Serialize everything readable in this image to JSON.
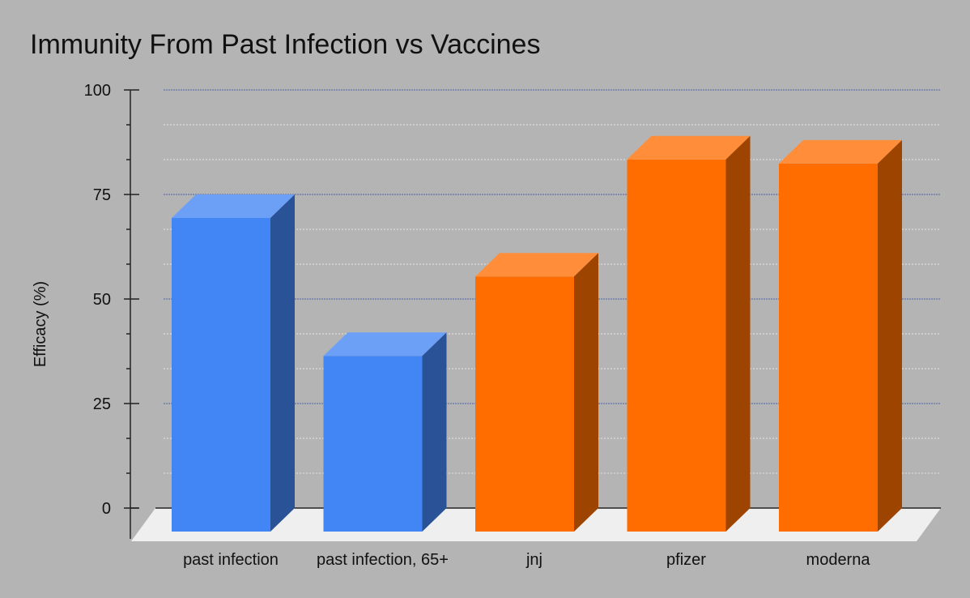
{
  "chart_data": {
    "type": "bar",
    "title": "Immunity From Past Infection vs Vaccines",
    "xlabel": "",
    "ylabel": "Efficacy (%)",
    "categories": [
      "past infection",
      "past infection, 65+",
      "jnj",
      "pfizer",
      "moderna"
    ],
    "values": [
      75,
      42,
      61,
      89,
      88
    ],
    "ylim": [
      0,
      100
    ],
    "yticks": [
      0,
      25,
      50,
      75,
      100
    ],
    "grid": true,
    "style": "3d",
    "bar_colors": [
      "#4285f4",
      "#4285f4",
      "#ff6d01",
      "#ff6d01",
      "#ff6d01"
    ],
    "background_color": "#b4b4b4",
    "floor_color": "#efefef"
  }
}
